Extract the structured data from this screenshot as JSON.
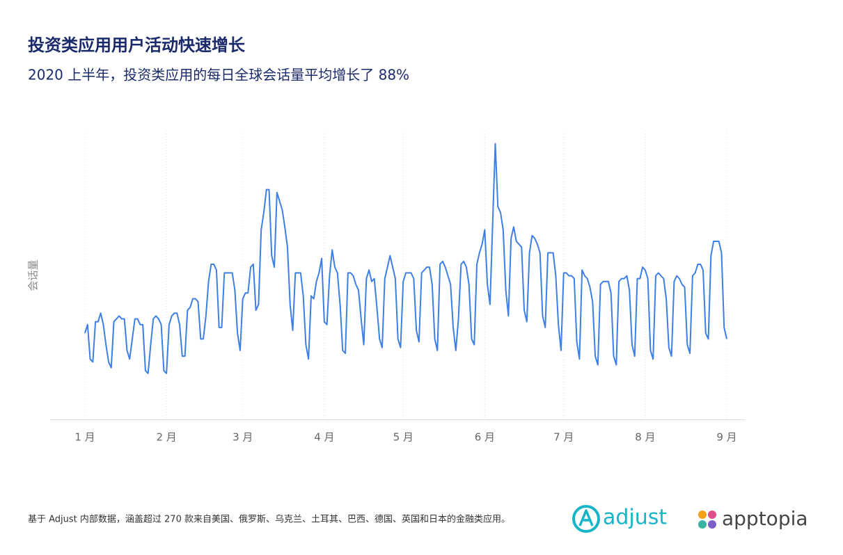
{
  "chart_data": {
    "type": "line",
    "title": "投资类应用用户活动快速增长",
    "subtitle": "2020 上半年，投资类应用的每日全球会话量平均增长了 88%",
    "y_label": "会话量",
    "x": [
      0,
      1,
      2,
      3,
      4,
      5,
      6,
      7,
      8,
      9,
      10,
      11,
      12,
      13,
      14,
      15,
      16,
      17,
      18,
      19,
      20,
      21,
      22,
      23,
      24,
      25,
      26,
      27,
      28,
      29,
      30,
      31,
      32,
      33,
      34,
      35,
      36,
      37,
      38,
      39,
      40,
      41,
      42,
      43,
      44,
      45,
      46,
      47,
      48,
      49,
      50,
      51,
      52,
      53,
      54,
      55,
      56,
      57,
      58,
      59,
      60,
      61,
      62,
      63,
      64,
      65,
      66,
      67,
      68,
      69,
      70,
      71,
      72,
      73,
      74,
      75,
      76,
      77,
      78,
      79,
      80,
      81,
      82,
      83,
      84,
      85,
      86,
      87,
      88,
      89,
      90,
      91,
      92,
      93,
      94,
      95,
      96,
      97,
      98,
      99,
      100,
      101,
      102,
      103,
      104,
      105,
      106,
      107,
      108,
      109,
      110,
      111,
      112,
      113,
      114,
      115,
      116,
      117,
      118,
      119,
      120,
      121,
      122,
      123,
      124,
      125,
      126,
      127,
      128,
      129,
      130,
      131,
      132,
      133,
      134,
      135,
      136,
      137,
      138,
      139,
      140,
      141,
      142,
      143,
      144,
      145,
      146,
      147,
      148,
      149,
      150,
      151,
      152,
      153,
      154,
      155,
      156,
      157,
      158,
      159,
      160,
      161,
      162,
      163,
      164,
      165,
      166,
      167,
      168,
      169,
      170,
      171,
      172,
      173,
      174,
      175,
      176,
      177,
      178,
      179,
      180,
      181,
      182,
      183,
      184,
      185,
      186,
      187,
      188,
      189,
      190,
      191,
      192,
      193,
      194,
      195,
      196,
      197,
      198,
      199,
      200,
      201,
      202,
      203,
      204,
      205,
      206,
      207,
      208,
      209,
      210,
      211,
      212,
      213,
      214,
      215,
      216,
      217,
      218,
      219,
      220,
      221,
      222,
      223,
      224,
      225,
      226,
      227,
      228,
      229,
      230,
      231,
      232,
      233,
      234,
      235,
      236,
      237,
      238,
      239,
      240,
      241,
      242,
      243,
      244
    ],
    "series": [
      {
        "color": "#3d7fe6",
        "values": [
          30,
          33,
          21,
          20,
          34,
          34,
          37,
          33,
          26,
          20,
          18,
          34,
          35,
          36,
          35,
          35,
          24,
          21,
          28,
          35,
          35,
          33,
          33,
          17,
          16,
          26,
          35,
          36,
          35,
          33,
          17,
          16,
          33,
          36,
          37,
          37,
          33,
          22,
          22,
          38,
          39,
          42,
          42,
          41,
          28,
          28,
          36,
          48,
          54,
          54,
          52,
          32,
          32,
          51,
          51,
          51,
          51,
          45,
          30,
          24,
          42,
          44,
          44,
          53,
          54,
          38,
          40,
          66,
          72,
          80,
          80,
          57,
          53,
          79,
          76,
          73,
          67,
          60,
          40,
          31,
          51,
          51,
          51,
          43,
          26,
          21,
          43,
          42,
          48,
          51,
          56,
          34,
          33,
          50,
          59,
          53,
          51,
          40,
          24,
          23,
          51,
          51,
          50,
          47,
          45,
          35,
          26,
          49,
          52,
          48,
          49,
          39,
          28,
          25,
          49,
          53,
          57,
          53,
          49,
          28,
          25,
          48,
          51,
          51,
          51,
          49,
          31,
          27,
          51,
          52,
          53,
          53,
          47,
          28,
          24,
          54,
          55,
          53,
          50,
          47,
          32,
          24,
          35,
          54,
          55,
          53,
          47,
          28,
          26,
          54,
          58,
          61,
          66,
          47,
          40,
          68,
          96,
          74,
          72,
          66,
          45,
          36,
          63,
          67,
          62,
          61,
          60,
          38,
          34,
          58,
          64,
          63,
          61,
          58,
          36,
          32,
          58,
          58,
          58,
          50,
          33,
          24,
          51,
          51,
          50,
          50,
          49,
          27,
          21,
          52,
          50,
          49,
          46,
          41,
          22,
          19,
          47,
          48,
          48,
          48,
          44,
          22,
          19,
          48,
          49,
          49,
          50,
          45,
          26,
          22,
          49,
          49,
          53,
          52,
          49,
          24,
          21,
          50,
          51,
          50,
          49,
          42,
          25,
          22,
          48,
          50,
          49,
          47,
          46,
          26,
          23,
          50,
          51,
          54,
          54,
          52,
          30,
          28,
          57,
          62,
          62,
          62,
          58,
          32,
          28
        ]
      }
    ],
    "xlim": [
      0,
      244
    ],
    "xticks": [
      {
        "value": 0,
        "label": "1 月"
      },
      {
        "value": 31,
        "label": "2 月"
      },
      {
        "value": 60,
        "label": "3 月"
      },
      {
        "value": 91,
        "label": "4 月"
      },
      {
        "value": 121,
        "label": "5 月"
      },
      {
        "value": 152,
        "label": "6 月"
      },
      {
        "value": 182,
        "label": "7 月"
      },
      {
        "value": 213,
        "label": "8 月"
      },
      {
        "value": 244,
        "label": "9 月"
      }
    ],
    "ylim": [
      0,
      100
    ],
    "grid": true
  },
  "footer": {
    "note": "基于 Adjust 内部数据，涵盖超过 270 款来自美国、俄罗斯、乌克兰、土耳其、巴西、德国、英国和日本的金融类应用。",
    "logos": [
      "adjust",
      "apptopia"
    ]
  }
}
